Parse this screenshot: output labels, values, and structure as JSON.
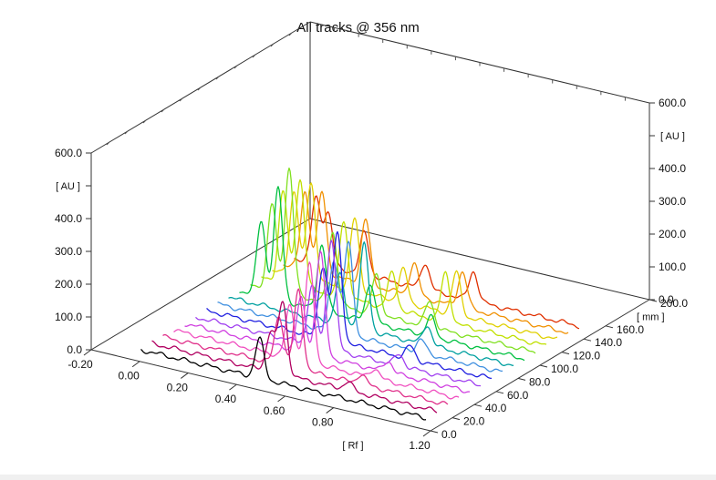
{
  "chart_data": {
    "type": "line",
    "title": "All tracks @ 356 nm",
    "z_axis": {
      "unit": "[ AU ]",
      "range": [
        0,
        600
      ],
      "ticks": [
        "0.0",
        "100.0",
        "200.0",
        "300.0",
        "400.0",
        "500.0",
        "600.0"
      ]
    },
    "x_axis": {
      "unit": "[ Rf ]",
      "range": [
        -0.2,
        1.2
      ],
      "ticks": [
        "-0.20",
        "0.00",
        "0.20",
        "0.40",
        "0.60",
        "0.80",
        "1.20"
      ]
    },
    "y_axis": {
      "unit": "[ mm ]",
      "range": [
        0,
        200
      ],
      "ticks": [
        "0.0",
        "20.0",
        "40.0",
        "60.0",
        "80.0",
        "100.0",
        "120.0",
        "140.0",
        "160.0",
        "200.0"
      ]
    },
    "grid": false,
    "series": [
      {
        "color": "#000000",
        "y_mm": 10,
        "peaks": [
          [
            0.45,
            120
          ]
        ]
      },
      {
        "color": "#b00060",
        "y_mm": 20,
        "peaks": [
          [
            0.45,
            120
          ],
          [
            0.5,
            220
          ],
          [
            0.77,
            25
          ]
        ]
      },
      {
        "color": "#e0308a",
        "y_mm": 30,
        "peaks": [
          [
            0.44,
            150
          ],
          [
            0.52,
            240
          ],
          [
            0.78,
            30
          ]
        ]
      },
      {
        "color": "#f050c0",
        "y_mm": 40,
        "peaks": [
          [
            0.44,
            160
          ],
          [
            0.52,
            300
          ],
          [
            0.79,
            30
          ]
        ]
      },
      {
        "color": "#d040e0",
        "y_mm": 50,
        "peaks": [
          [
            0.44,
            160
          ],
          [
            0.52,
            320
          ],
          [
            0.8,
            35
          ]
        ]
      },
      {
        "color": "#a040f0",
        "y_mm": 60,
        "peaks": [
          [
            0.44,
            180
          ],
          [
            0.52,
            340
          ],
          [
            0.8,
            35
          ]
        ]
      },
      {
        "color": "#2020e0",
        "y_mm": 70,
        "peaks": [
          [
            0.44,
            220
          ],
          [
            0.5,
            330
          ],
          [
            0.8,
            40
          ]
        ]
      },
      {
        "color": "#4090e0",
        "y_mm": 80,
        "peaks": [
          [
            0.44,
            220
          ],
          [
            0.5,
            280
          ],
          [
            0.8,
            40
          ]
        ]
      },
      {
        "color": "#00a0a0",
        "y_mm": 90,
        "peaks": [
          [
            0.42,
            150
          ],
          [
            0.52,
            260
          ],
          [
            0.78,
            60
          ]
        ]
      },
      {
        "color": "#00c040",
        "y_mm": 100,
        "peaks": [
          [
            0.05,
            230
          ],
          [
            0.12,
            340
          ],
          [
            0.3,
            200
          ],
          [
            0.5,
            120
          ],
          [
            0.75,
            60
          ]
        ]
      },
      {
        "color": "#80e020",
        "y_mm": 110,
        "peaks": [
          [
            0.05,
            260
          ],
          [
            0.12,
            380
          ],
          [
            0.3,
            220
          ],
          [
            0.48,
            120
          ],
          [
            0.7,
            80
          ]
        ]
      },
      {
        "color": "#c0e000",
        "y_mm": 120,
        "peaks": [
          [
            0.05,
            280
          ],
          [
            0.12,
            330
          ],
          [
            0.3,
            230
          ],
          [
            0.5,
            110
          ],
          [
            0.72,
            150
          ]
        ]
      },
      {
        "color": "#e0d000",
        "y_mm": 130,
        "peaks": [
          [
            0.05,
            260
          ],
          [
            0.12,
            300
          ],
          [
            0.3,
            220
          ],
          [
            0.5,
            100
          ],
          [
            0.72,
            130
          ]
        ]
      },
      {
        "color": "#f09000",
        "y_mm": 140,
        "peaks": [
          [
            0.05,
            240
          ],
          [
            0.12,
            250
          ],
          [
            0.3,
            200
          ],
          [
            0.5,
            100
          ],
          [
            0.7,
            110
          ]
        ]
      },
      {
        "color": "#e03000",
        "y_mm": 150,
        "peaks": [
          [
            0.05,
            200
          ],
          [
            0.1,
            160
          ],
          [
            0.25,
            130
          ],
          [
            0.5,
            80
          ],
          [
            0.7,
            90
          ]
        ]
      }
    ]
  }
}
